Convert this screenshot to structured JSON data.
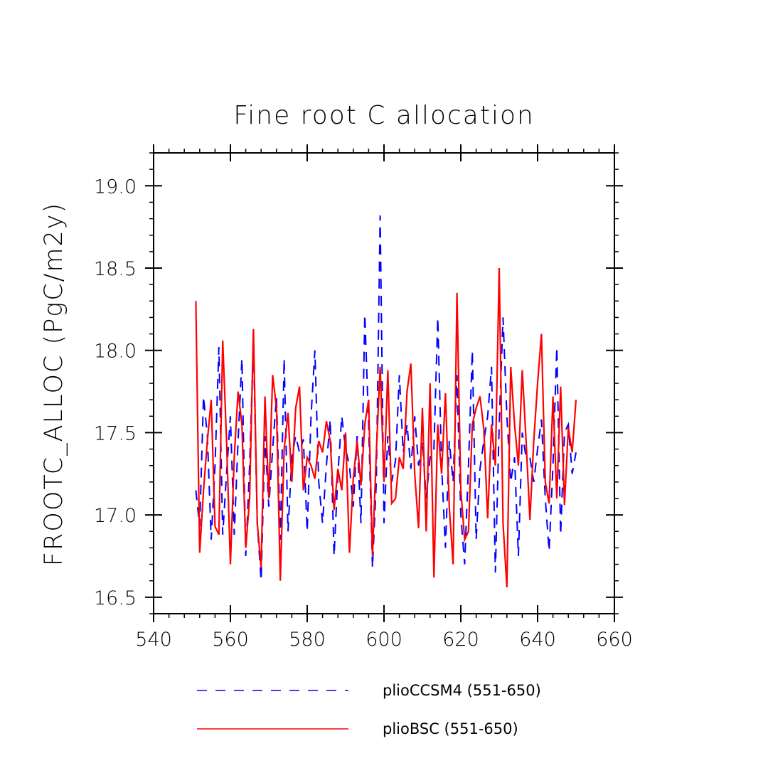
{
  "chart_data": {
    "type": "line",
    "title": "Fine root C allocation",
    "xlabel": "",
    "ylabel": "FROOTC_ALLOC  (PgC/m2y)",
    "xlim": [
      540,
      660
    ],
    "ylim": [
      16.4,
      19.2
    ],
    "xticks": [
      540,
      560,
      580,
      600,
      620,
      640,
      660
    ],
    "xtick_labels": [
      "540",
      "560",
      "580",
      "600",
      "620",
      "640",
      "660"
    ],
    "yticks": [
      16.5,
      17.0,
      17.5,
      18.0,
      18.5,
      19.0
    ],
    "ytick_labels": [
      "16.5",
      "17.0",
      "17.5",
      "18.0",
      "18.5",
      "19.0"
    ],
    "x": [
      551,
      552,
      553,
      554,
      555,
      556,
      557,
      558,
      559,
      560,
      561,
      562,
      563,
      564,
      565,
      566,
      567,
      568,
      569,
      570,
      571,
      572,
      573,
      574,
      575,
      576,
      577,
      578,
      579,
      580,
      581,
      582,
      583,
      584,
      585,
      586,
      587,
      588,
      589,
      590,
      591,
      592,
      593,
      594,
      595,
      596,
      597,
      598,
      599,
      600,
      601,
      602,
      603,
      604,
      605,
      606,
      607,
      608,
      609,
      610,
      611,
      612,
      613,
      614,
      615,
      616,
      617,
      618,
      619,
      620,
      621,
      622,
      623,
      624,
      625,
      626,
      627,
      628,
      629,
      630,
      631,
      632,
      633,
      634,
      635,
      636,
      637,
      638,
      639,
      640,
      641,
      642,
      643,
      644,
      645,
      646,
      647,
      648,
      649,
      650
    ],
    "series": [
      {
        "name": "plioCCSM4 (551-650)",
        "color": "#0000ff",
        "dash": "dashed",
        "values": [
          17.15,
          16.93,
          17.72,
          17.48,
          16.85,
          17.3,
          18.02,
          16.88,
          17.25,
          17.6,
          16.88,
          17.45,
          17.95,
          16.75,
          17.3,
          18.05,
          16.95,
          16.6,
          17.48,
          17.05,
          17.4,
          17.72,
          16.85,
          17.95,
          16.9,
          17.35,
          17.48,
          17.38,
          17.46,
          16.9,
          17.6,
          18.0,
          17.2,
          16.95,
          17.3,
          17.58,
          16.75,
          17.25,
          17.6,
          17.4,
          17.3,
          17.05,
          17.48,
          16.95,
          18.22,
          17.55,
          16.68,
          17.2,
          18.82,
          16.95,
          17.48,
          17.2,
          17.33,
          17.85,
          17.38,
          17.55,
          17.28,
          17.6,
          17.3,
          17.45,
          17.1,
          17.35,
          17.4,
          18.2,
          17.3,
          16.8,
          17.45,
          17.2,
          17.85,
          17.0,
          16.7,
          17.3,
          18.0,
          16.85,
          17.28,
          17.45,
          17.6,
          17.9,
          16.65,
          17.55,
          18.2,
          17.6,
          17.2,
          17.35,
          16.75,
          17.5,
          17.35,
          17.35,
          17.2,
          17.4,
          17.58,
          17.1,
          16.78,
          17.3,
          18.02,
          16.88,
          17.5,
          17.55,
          17.25,
          17.38
        ]
      },
      {
        "name": "plioBSC (551-650)",
        "color": "#ff0000",
        "dash": "solid",
        "values": [
          18.3,
          16.77,
          17.15,
          17.45,
          17.7,
          16.93,
          16.88,
          18.06,
          17.45,
          16.7,
          17.35,
          17.75,
          17.55,
          16.8,
          17.1,
          18.13,
          16.95,
          16.68,
          17.72,
          17.1,
          17.85,
          17.65,
          16.6,
          17.4,
          17.62,
          17.2,
          17.65,
          17.78,
          17.15,
          17.35,
          17.3,
          17.22,
          17.45,
          17.38,
          17.57,
          17.45,
          17.03,
          17.28,
          17.15,
          17.5,
          16.77,
          17.22,
          17.45,
          17.18,
          17.55,
          17.7,
          16.75,
          17.38,
          17.9,
          17.2,
          17.88,
          17.07,
          17.1,
          17.35,
          17.28,
          17.75,
          17.92,
          17.25,
          16.92,
          17.65,
          16.9,
          17.8,
          16.62,
          17.55,
          17.25,
          17.74,
          17.05,
          16.7,
          18.35,
          17.15,
          16.85,
          16.9,
          17.55,
          17.65,
          17.72,
          17.52,
          16.98,
          17.55,
          17.3,
          18.5,
          16.95,
          16.56,
          17.9,
          17.55,
          17.3,
          17.88,
          17.45,
          16.97,
          17.45,
          17.8,
          18.1,
          17.2,
          17.07,
          17.72,
          17.1,
          17.78,
          17.06,
          17.53,
          17.38,
          17.7
        ]
      }
    ],
    "legend": [
      {
        "label": "plioCCSM4 (551-650)",
        "color": "#0000ff",
        "dash": "dashed"
      },
      {
        "label": "plioBSC (551-650)",
        "color": "#ff0000",
        "dash": "solid"
      }
    ],
    "legend_position": "bottom-center",
    "grid": false
  }
}
